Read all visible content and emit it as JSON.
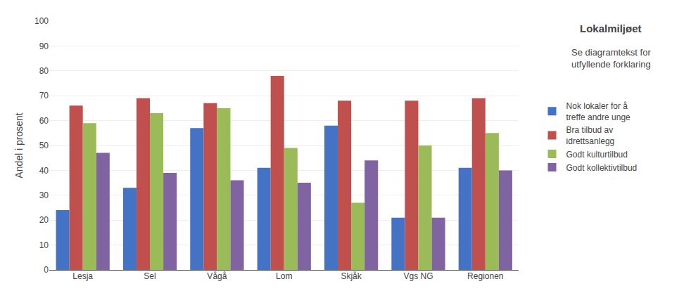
{
  "chart_data": {
    "type": "bar",
    "title": "Lokalmiljøet",
    "subtitle": "Se diagramtekst for\nutfyllende forklaring",
    "categories": [
      "Lesja",
      "Sel",
      "Vågå",
      "Lom",
      "Skjåk",
      "Vgs NG",
      "Regionen"
    ],
    "series": [
      {
        "name": "Nok lokaler for å\ntreffe andre unge",
        "color": "#4472C4",
        "values": [
          24,
          33,
          57,
          41,
          58,
          21,
          41
        ]
      },
      {
        "name": "Bra tilbud av\nidrettsanlegg",
        "color": "#C0504D",
        "values": [
          66,
          69,
          67,
          78,
          68,
          68,
          69
        ]
      },
      {
        "name": "Godt kulturtilbud",
        "color": "#9BBB59",
        "values": [
          59,
          63,
          65,
          49,
          27,
          50,
          55
        ]
      },
      {
        "name": "Godt kollektivtilbud",
        "color": "#8064A2",
        "values": [
          47,
          39,
          36,
          35,
          44,
          21,
          40
        ]
      }
    ],
    "ylabel": "Andel i prosent",
    "ylim": [
      0,
      100
    ],
    "yticks": [
      0,
      10,
      20,
      30,
      40,
      50,
      60,
      70,
      80,
      90,
      100
    ],
    "grid": true,
    "legend": "right"
  }
}
